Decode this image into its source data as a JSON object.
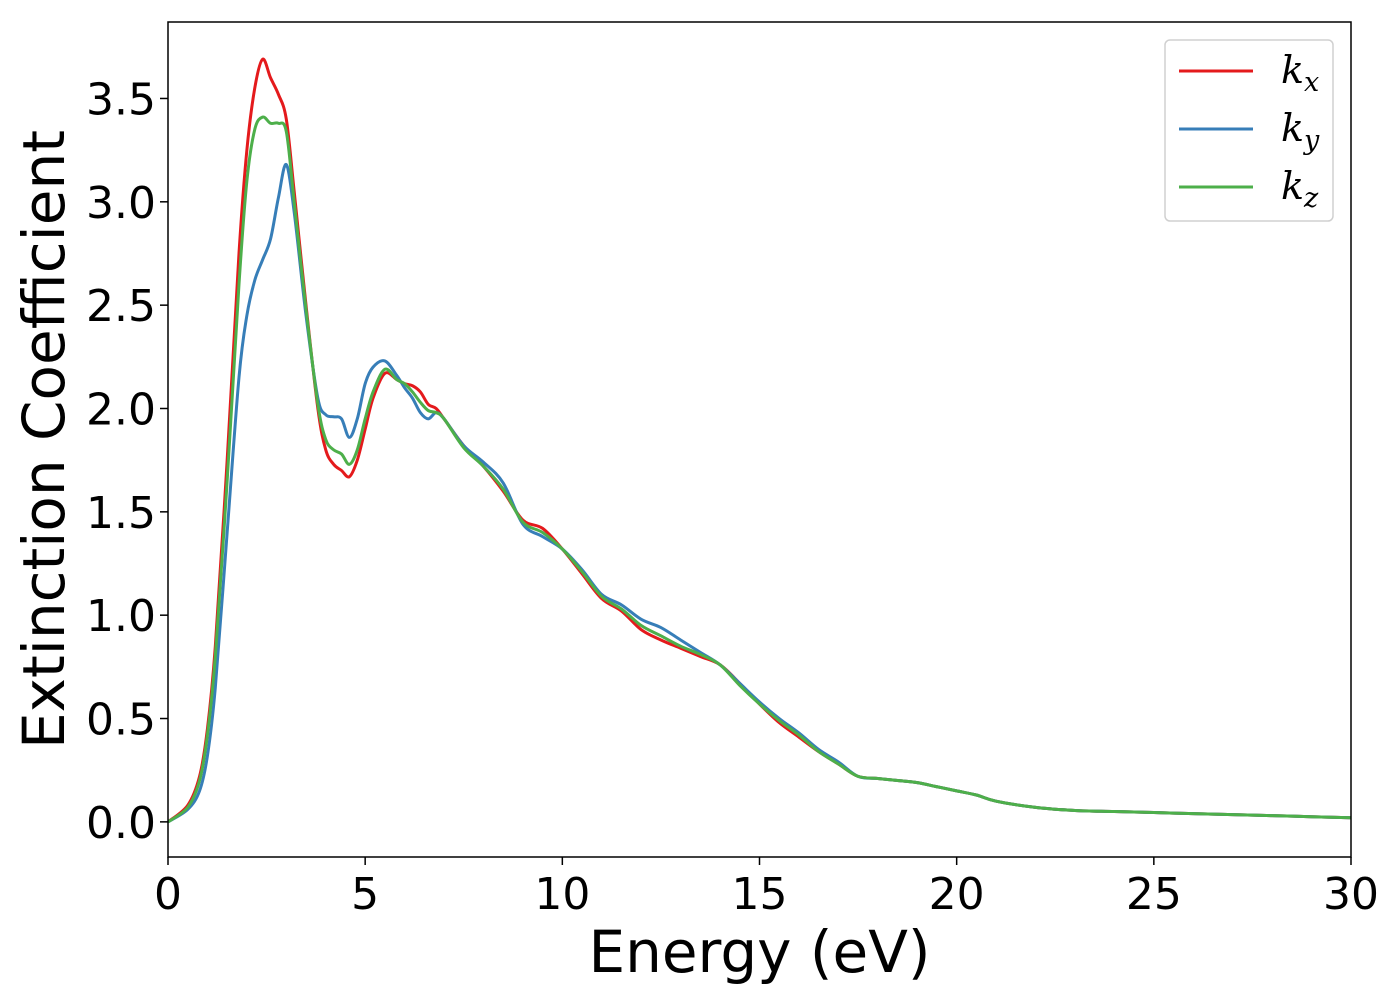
{
  "chart_data": {
    "type": "line",
    "title": "",
    "xlabel": "Energy (eV)",
    "ylabel": "Extinction Coefficient",
    "xlim": [
      0,
      30
    ],
    "ylim": [
      -0.17,
      3.87
    ],
    "xticks": [
      0,
      5,
      10,
      15,
      20,
      25,
      30
    ],
    "xtick_labels": [
      "0",
      "5",
      "10",
      "15",
      "20",
      "25",
      "30"
    ],
    "yticks": [
      0.0,
      0.5,
      1.0,
      1.5,
      2.0,
      2.5,
      3.0,
      3.5
    ],
    "ytick_labels": [
      "0.0",
      "0.5",
      "1.0",
      "1.5",
      "2.0",
      "2.5",
      "3.0",
      "3.5"
    ],
    "grid": false,
    "legend_position": "top-right",
    "series": [
      {
        "name": "k",
        "name_sub": "x",
        "color": "#e41a1c",
        "x": [
          0,
          0.5,
          0.8,
          1.0,
          1.2,
          1.5,
          1.8,
          2.0,
          2.2,
          2.4,
          2.6,
          2.8,
          3.0,
          3.2,
          3.5,
          3.8,
          4.0,
          4.2,
          4.4,
          4.6,
          4.8,
          5.0,
          5.2,
          5.5,
          5.8,
          6.0,
          6.2,
          6.4,
          6.6,
          6.8,
          7.0,
          7.5,
          8.0,
          8.5,
          9.0,
          9.5,
          10.0,
          10.5,
          11.0,
          11.5,
          12.0,
          12.5,
          13.0,
          13.5,
          14.0,
          14.5,
          15.0,
          15.5,
          16.0,
          16.5,
          17.0,
          17.5,
          18.0,
          18.5,
          19.0,
          19.5,
          20.0,
          20.5,
          21.0,
          22.0,
          23.0,
          24.0,
          25.0,
          26.0,
          27.0,
          28.0,
          29.0,
          30.0
        ],
        "y": [
          0.0,
          0.08,
          0.22,
          0.45,
          0.85,
          1.75,
          2.75,
          3.25,
          3.55,
          3.69,
          3.6,
          3.52,
          3.4,
          3.05,
          2.5,
          2.0,
          1.8,
          1.73,
          1.7,
          1.67,
          1.75,
          1.9,
          2.05,
          2.17,
          2.14,
          2.12,
          2.11,
          2.08,
          2.02,
          2.0,
          1.95,
          1.82,
          1.72,
          1.6,
          1.46,
          1.42,
          1.32,
          1.2,
          1.08,
          1.02,
          0.93,
          0.88,
          0.84,
          0.8,
          0.76,
          0.67,
          0.57,
          0.48,
          0.41,
          0.34,
          0.28,
          0.22,
          0.21,
          0.2,
          0.19,
          0.17,
          0.15,
          0.13,
          0.1,
          0.07,
          0.055,
          0.05,
          0.045,
          0.04,
          0.035,
          0.03,
          0.025,
          0.02
        ]
      },
      {
        "name": "k",
        "name_sub": "y",
        "color": "#377eb8",
        "x": [
          0,
          0.5,
          0.8,
          1.0,
          1.2,
          1.5,
          1.8,
          2.0,
          2.2,
          2.4,
          2.6,
          2.8,
          3.0,
          3.2,
          3.5,
          3.8,
          4.0,
          4.2,
          4.4,
          4.6,
          4.8,
          5.0,
          5.2,
          5.5,
          5.8,
          6.0,
          6.2,
          6.4,
          6.6,
          6.8,
          7.0,
          7.5,
          8.0,
          8.5,
          9.0,
          9.5,
          10.0,
          10.5,
          11.0,
          11.5,
          12.0,
          12.5,
          13.0,
          13.5,
          14.0,
          14.5,
          15.0,
          15.5,
          16.0,
          16.5,
          17.0,
          17.5,
          18.0,
          18.5,
          19.0,
          19.5,
          20.0,
          20.5,
          21.0,
          22.0,
          23.0,
          24.0,
          25.0,
          26.0,
          27.0,
          28.0,
          29.0,
          30.0
        ],
        "y": [
          0.0,
          0.06,
          0.15,
          0.32,
          0.65,
          1.4,
          2.15,
          2.45,
          2.62,
          2.72,
          2.82,
          3.02,
          3.18,
          2.95,
          2.45,
          2.05,
          1.97,
          1.96,
          1.95,
          1.86,
          1.95,
          2.12,
          2.2,
          2.23,
          2.16,
          2.1,
          2.05,
          1.98,
          1.95,
          1.98,
          1.95,
          1.82,
          1.74,
          1.64,
          1.44,
          1.38,
          1.32,
          1.22,
          1.1,
          1.05,
          0.98,
          0.94,
          0.88,
          0.82,
          0.76,
          0.67,
          0.58,
          0.5,
          0.43,
          0.35,
          0.29,
          0.22,
          0.21,
          0.2,
          0.19,
          0.17,
          0.15,
          0.13,
          0.1,
          0.07,
          0.055,
          0.05,
          0.045,
          0.04,
          0.035,
          0.03,
          0.025,
          0.02
        ]
      },
      {
        "name": "k",
        "name_sub": "z",
        "color": "#4daf4a",
        "x": [
          0,
          0.5,
          0.8,
          1.0,
          1.2,
          1.5,
          1.8,
          2.0,
          2.2,
          2.4,
          2.6,
          2.8,
          3.0,
          3.2,
          3.5,
          3.8,
          4.0,
          4.2,
          4.4,
          4.6,
          4.8,
          5.0,
          5.2,
          5.5,
          5.8,
          6.0,
          6.2,
          6.4,
          6.6,
          6.8,
          7.0,
          7.5,
          8.0,
          8.5,
          9.0,
          9.5,
          10.0,
          10.5,
          11.0,
          11.5,
          12.0,
          12.5,
          13.0,
          13.5,
          14.0,
          14.5,
          15.0,
          15.5,
          16.0,
          16.5,
          17.0,
          17.5,
          18.0,
          18.5,
          19.0,
          19.5,
          20.0,
          20.5,
          21.0,
          22.0,
          23.0,
          24.0,
          25.0,
          26.0,
          27.0,
          28.0,
          29.0,
          30.0
        ],
        "y": [
          0.0,
          0.07,
          0.2,
          0.42,
          0.8,
          1.65,
          2.6,
          3.1,
          3.35,
          3.41,
          3.38,
          3.38,
          3.34,
          3.0,
          2.48,
          2.02,
          1.85,
          1.8,
          1.78,
          1.73,
          1.8,
          1.95,
          2.08,
          2.19,
          2.14,
          2.12,
          2.08,
          2.03,
          1.99,
          1.98,
          1.95,
          1.81,
          1.72,
          1.61,
          1.45,
          1.4,
          1.32,
          1.21,
          1.09,
          1.03,
          0.95,
          0.9,
          0.85,
          0.81,
          0.76,
          0.66,
          0.57,
          0.49,
          0.42,
          0.34,
          0.28,
          0.22,
          0.21,
          0.2,
          0.19,
          0.17,
          0.15,
          0.13,
          0.1,
          0.07,
          0.055,
          0.05,
          0.045,
          0.04,
          0.035,
          0.03,
          0.025,
          0.02
        ]
      }
    ]
  }
}
